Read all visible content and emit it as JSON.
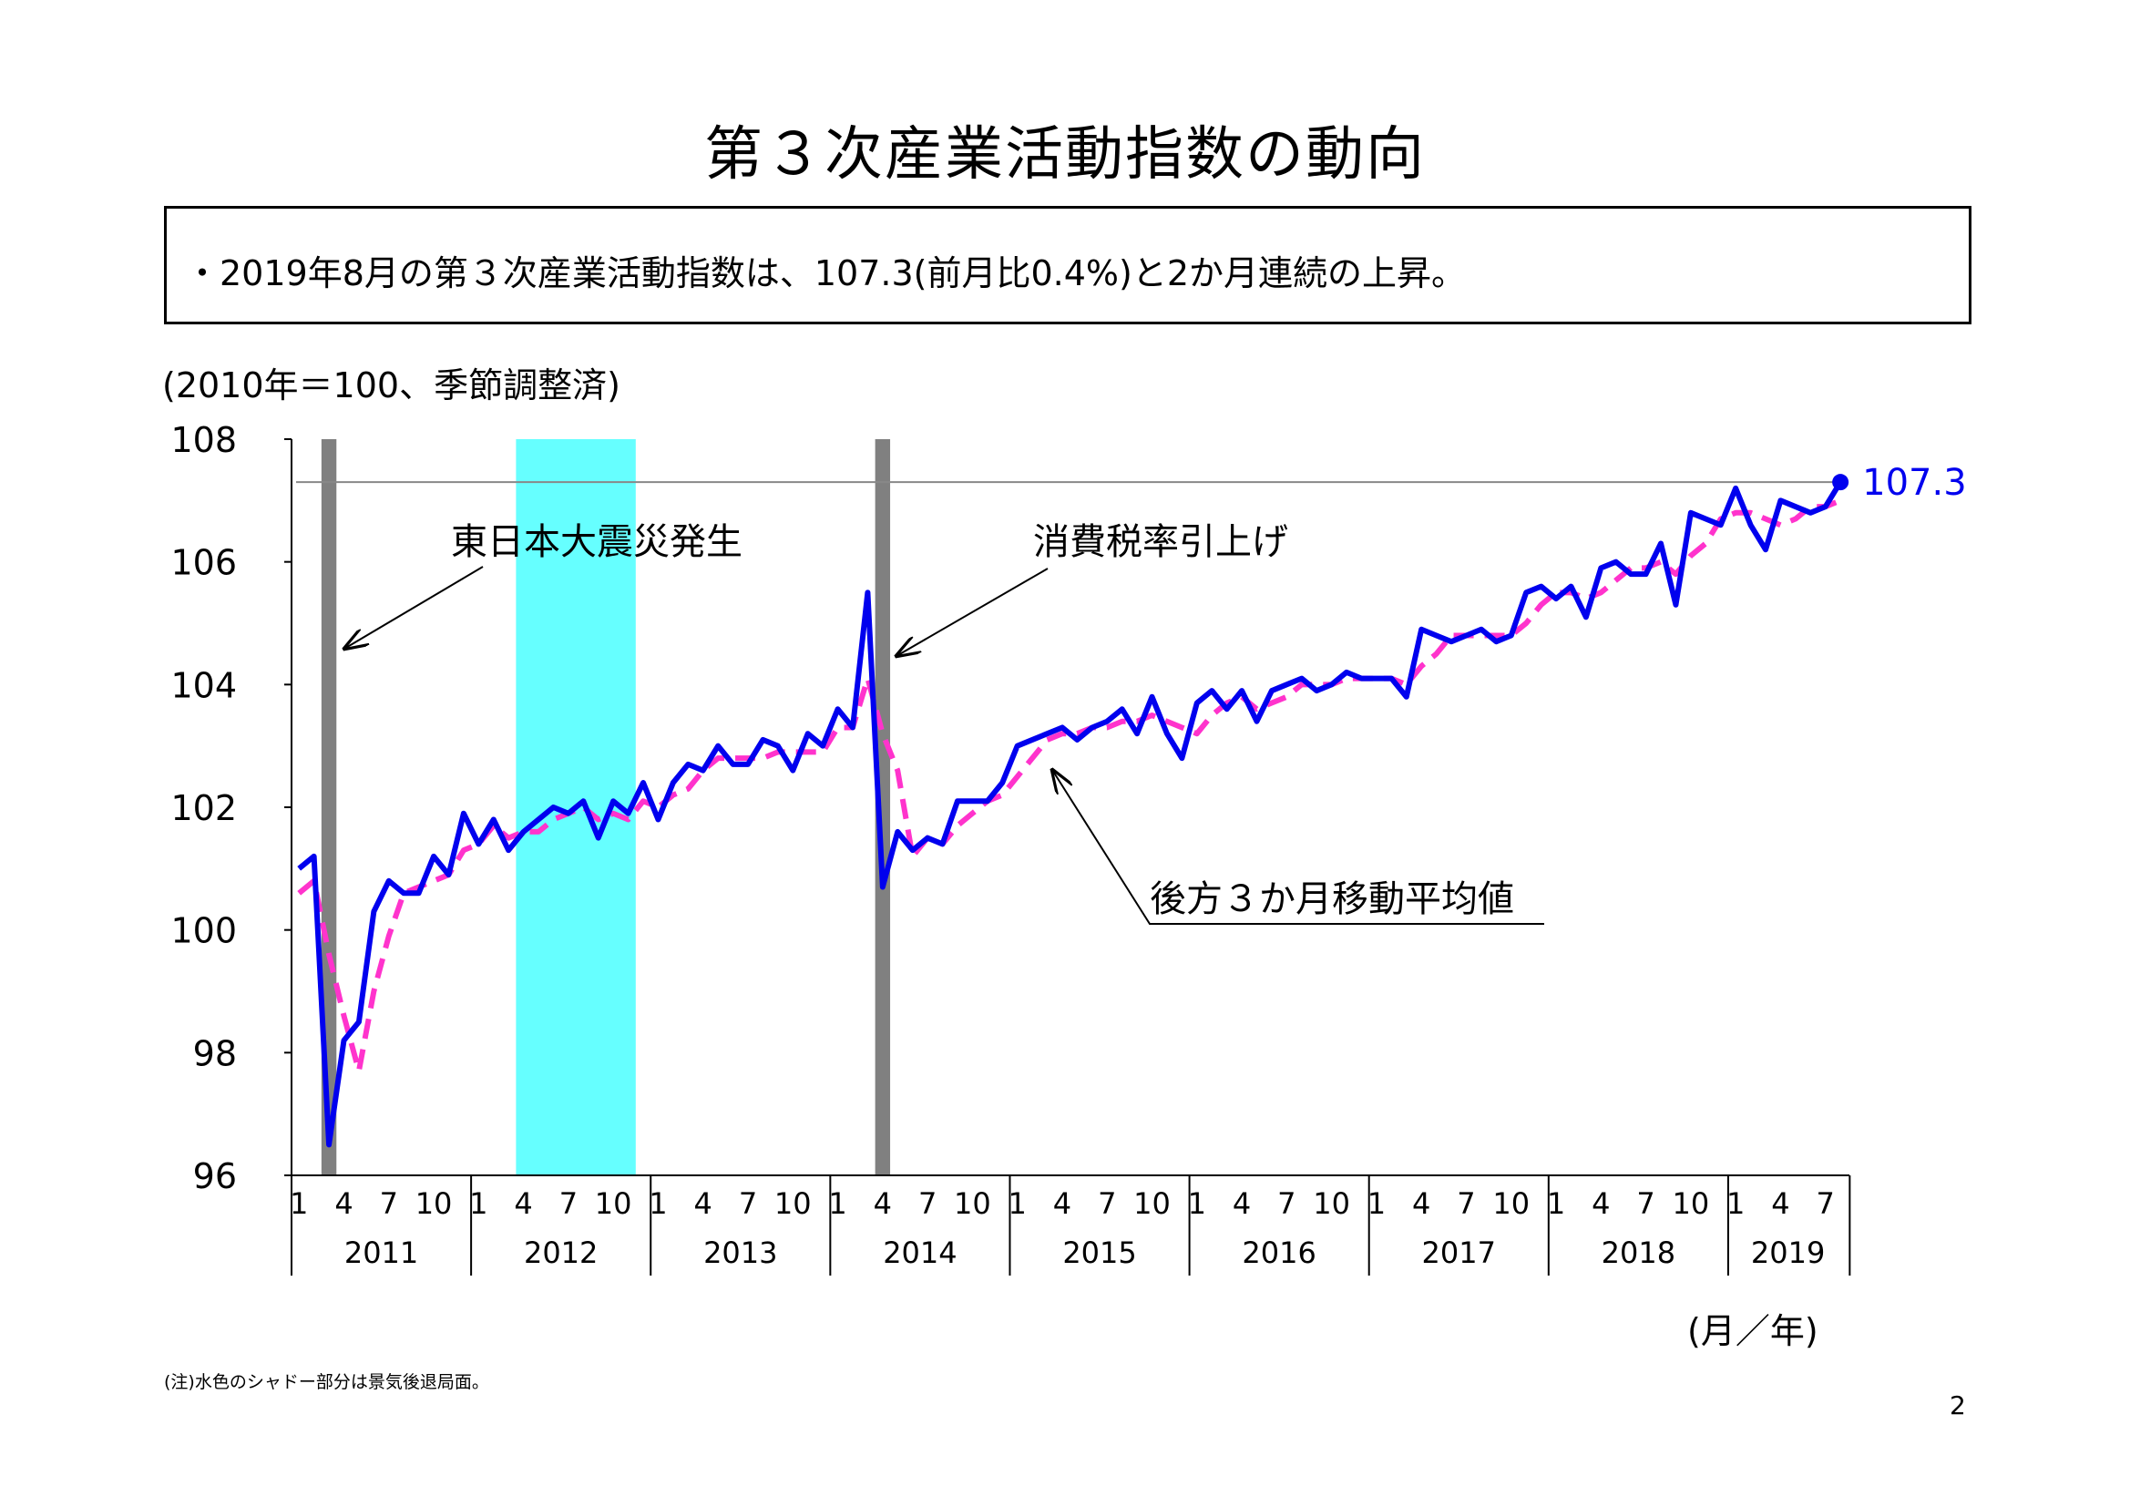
{
  "page": {
    "title": "第３次産業活動指数の動向",
    "summary": "・2019年8月の第３次産業活動指数は、107.3(前月比0.4%)と2か月連続の上昇。",
    "units_label": "(2010年＝100、季節調整済)",
    "x_unit_label": "(月／年)",
    "note": "(注)水色のシャドー部分は景気後退局面。",
    "page_number": "2"
  },
  "chart_data": {
    "type": "line",
    "y_ticks": [
      "108",
      "106",
      "104",
      "102",
      "100",
      "98",
      "96"
    ],
    "ylim": [
      96,
      108
    ],
    "month_ticks": [
      "1",
      "4",
      "7",
      "10"
    ],
    "years": [
      "2011",
      "2012",
      "2013",
      "2014",
      "2015",
      "2016",
      "2017",
      "2018",
      "2019"
    ],
    "x_start": "2011-01",
    "x_end": "2019-08",
    "reference_line": 107.3,
    "end_label": "107.3",
    "annotations": [
      {
        "text": "東日本大震災発生"
      },
      {
        "text": "消費税率引上げ"
      },
      {
        "text": "後方３か月移動平均値"
      }
    ],
    "event_bars": [
      {
        "from": "2011-03",
        "to": "2011-03",
        "color": "#808080"
      },
      {
        "from": "2012-04",
        "to": "2012-11",
        "color": "#66ffff"
      },
      {
        "from": "2014-04",
        "to": "2014-04",
        "color": "#808080"
      }
    ],
    "series": [
      {
        "color": "#0000ee",
        "values": [
          101.0,
          101.2,
          96.5,
          98.2,
          98.5,
          100.3,
          100.8,
          100.6,
          100.6,
          101.2,
          100.9,
          101.9,
          101.4,
          101.8,
          101.3,
          101.6,
          101.8,
          102.0,
          101.9,
          102.1,
          101.5,
          102.1,
          101.9,
          102.4,
          101.8,
          102.4,
          102.7,
          102.6,
          103.0,
          102.7,
          102.7,
          103.1,
          103.0,
          102.6,
          103.2,
          103.0,
          103.6,
          103.3,
          105.5,
          100.7,
          101.6,
          101.3,
          101.5,
          101.4,
          102.1,
          102.1,
          102.1,
          102.4,
          103.0,
          103.1,
          103.2,
          103.3,
          103.1,
          103.3,
          103.4,
          103.6,
          103.2,
          103.8,
          103.2,
          102.8,
          103.7,
          103.9,
          103.6,
          103.9,
          103.4,
          103.9,
          104.0,
          104.1,
          103.9,
          104.0,
          104.2,
          104.1,
          104.1,
          104.1,
          103.8,
          104.9,
          104.8,
          104.7,
          104.8,
          104.9,
          104.7,
          104.8,
          105.5,
          105.6,
          105.4,
          105.6,
          105.1,
          105.9,
          106.0,
          105.8,
          105.8,
          106.3,
          105.3,
          106.8,
          106.7,
          106.6,
          107.2,
          106.6,
          106.2,
          107.0,
          106.9,
          106.8,
          106.9,
          107.3
        ]
      },
      {
        "color": "#ff33cc",
        "values": [
          100.6,
          100.8,
          99.6,
          98.6,
          97.7,
          99.0,
          99.9,
          100.6,
          100.7,
          100.8,
          100.9,
          101.3,
          101.4,
          101.7,
          101.5,
          101.6,
          101.6,
          101.8,
          101.9,
          102.0,
          101.8,
          101.9,
          101.8,
          102.1,
          102.0,
          102.2,
          102.3,
          102.6,
          102.8,
          102.8,
          102.8,
          102.8,
          102.9,
          102.9,
          102.9,
          102.9,
          103.3,
          103.3,
          104.1,
          103.2,
          102.6,
          101.2,
          101.5,
          101.4,
          101.7,
          101.9,
          102.1,
          102.2,
          102.5,
          102.8,
          103.1,
          103.2,
          103.2,
          103.3,
          103.3,
          103.4,
          103.4,
          103.5,
          103.4,
          103.3,
          103.2,
          103.5,
          103.7,
          103.8,
          103.6,
          103.7,
          103.8,
          104.0,
          104.0,
          104.0,
          104.1,
          104.1,
          104.1,
          104.1,
          104.0,
          104.3,
          104.5,
          104.8,
          104.8,
          104.8,
          104.8,
          104.8,
          105.0,
          105.3,
          105.5,
          105.5,
          105.4,
          105.5,
          105.7,
          105.9,
          105.9,
          106.0,
          105.8,
          106.1,
          106.3,
          106.7,
          106.8,
          106.8,
          106.7,
          106.6,
          106.7,
          106.9,
          106.9,
          107.0
        ]
      }
    ]
  }
}
